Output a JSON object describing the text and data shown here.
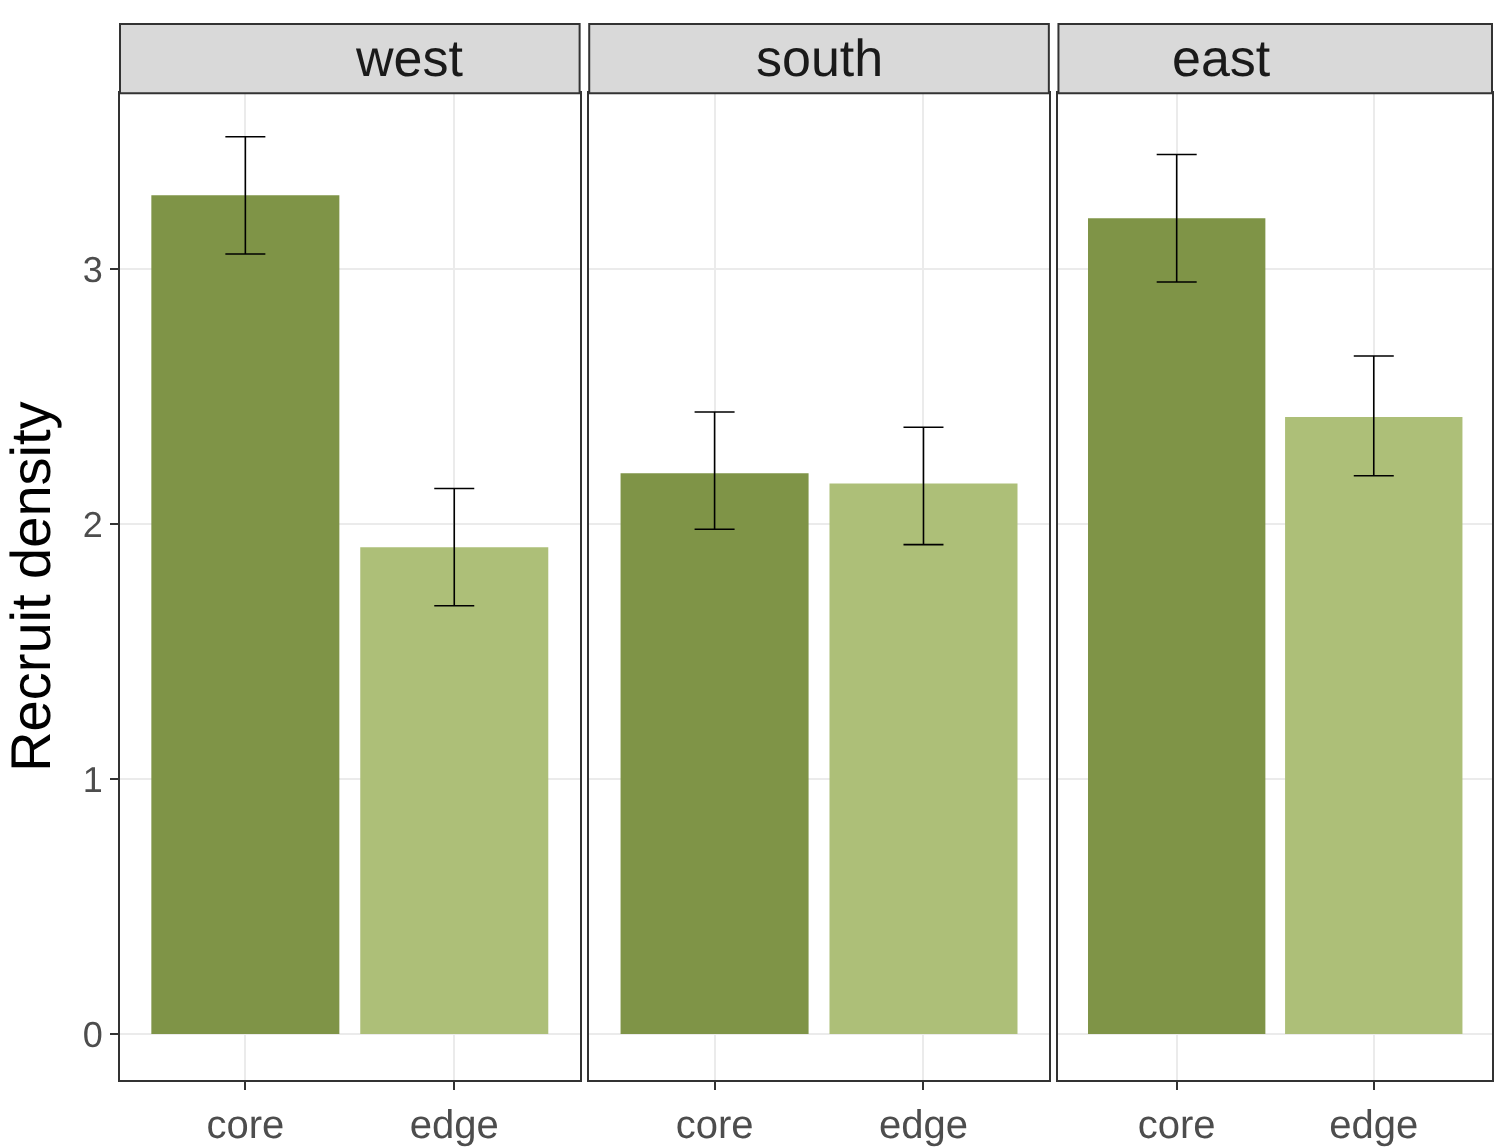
{
  "chart_data": [
    {
      "type": "bar",
      "title": "west",
      "ylabel": "Recruit density",
      "categories": [
        "core",
        "edge"
      ],
      "values": [
        3.29,
        1.91
      ],
      "colors": [
        "#7f9447",
        "#adbf78"
      ],
      "errors": [
        [
          3.06,
          3.52
        ],
        [
          1.68,
          2.14
        ]
      ],
      "ylim": [
        -0.18,
        3.69
      ],
      "yticks": [
        0,
        1,
        2,
        3
      ],
      "grid": true,
      "legend": false
    },
    {
      "type": "bar",
      "title": "south",
      "categories": [
        "core",
        "edge"
      ],
      "values": [
        2.2,
        2.16
      ],
      "colors": [
        "#7f9447",
        "#adbf78"
      ],
      "errors": [
        [
          1.98,
          2.44
        ],
        [
          1.92,
          2.38
        ]
      ],
      "ylim": [
        -0.18,
        3.69
      ],
      "yticks": [
        0,
        1,
        2,
        3
      ],
      "grid": true,
      "legend": false,
      "tick_labels": "x"
    },
    {
      "type": "bar",
      "title": "east",
      "categories": [
        "core",
        "edge"
      ],
      "values": [
        3.2,
        2.42
      ],
      "colors": [
        "#7f9447",
        "#adbf78"
      ],
      "errors": [
        [
          2.95,
          3.45
        ],
        [
          2.19,
          2.66
        ]
      ],
      "ylim": [
        -0.18,
        3.69
      ],
      "yticks": [
        0,
        1,
        2,
        3
      ],
      "grid": true,
      "legend": false,
      "tick_labels": "x"
    }
  ]
}
